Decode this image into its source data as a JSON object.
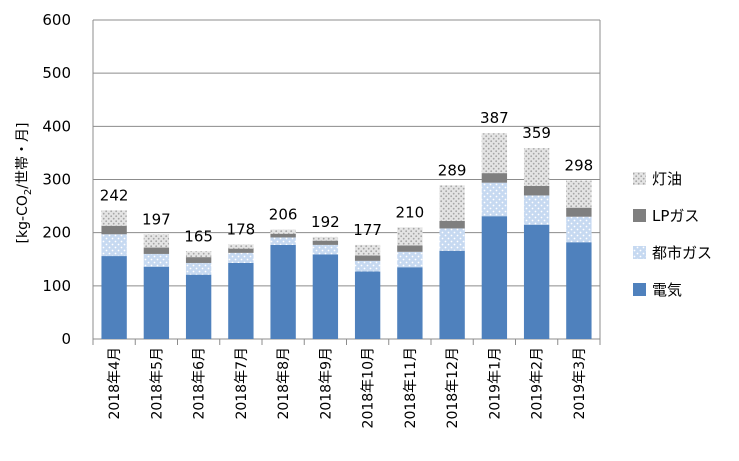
{
  "chart_data": {
    "type": "bar",
    "stacked": true,
    "ylabel": "[kg-CO2/世帯・月]",
    "ylabel_parts": {
      "before": "[kg-CO",
      "sub": "2",
      "after": "/世帯・月]"
    },
    "ylim": [
      0,
      600
    ],
    "yticks": [
      0,
      100,
      200,
      300,
      400,
      500,
      600
    ],
    "grid": true,
    "legend_position": "right",
    "categories": [
      "2018年4月",
      "2018年5月",
      "2018年6月",
      "2018年7月",
      "2018年8月",
      "2018年9月",
      "2018年10月",
      "2018年11月",
      "2018年12月",
      "2019年1月",
      "2019年2月",
      "2019年3月"
    ],
    "series": [
      {
        "name": "電気",
        "color": "#4f81bd",
        "pattern": "solid",
        "values": [
          156,
          136,
          121,
          143,
          177,
          159,
          127,
          135,
          166,
          231,
          215,
          182
        ]
      },
      {
        "name": "都市ガス",
        "color": "#c5d9f1",
        "pattern": "dots",
        "values": [
          41,
          24,
          22,
          19,
          14,
          18,
          20,
          29,
          42,
          63,
          55,
          48
        ]
      },
      {
        "name": "LPガス",
        "color": "#7f7f7f",
        "pattern": "solid",
        "values": [
          16,
          12,
          11,
          8,
          7,
          8,
          10,
          12,
          14,
          18,
          18,
          17
        ]
      },
      {
        "name": "灯油",
        "color": "#d0d0d0",
        "pattern": "dots",
        "values": [
          29,
          25,
          11,
          8,
          8,
          7,
          20,
          34,
          67,
          75,
          71,
          51
        ]
      }
    ],
    "totals": [
      242,
      197,
      165,
      178,
      206,
      192,
      177,
      210,
      289,
      387,
      359,
      298
    ]
  }
}
